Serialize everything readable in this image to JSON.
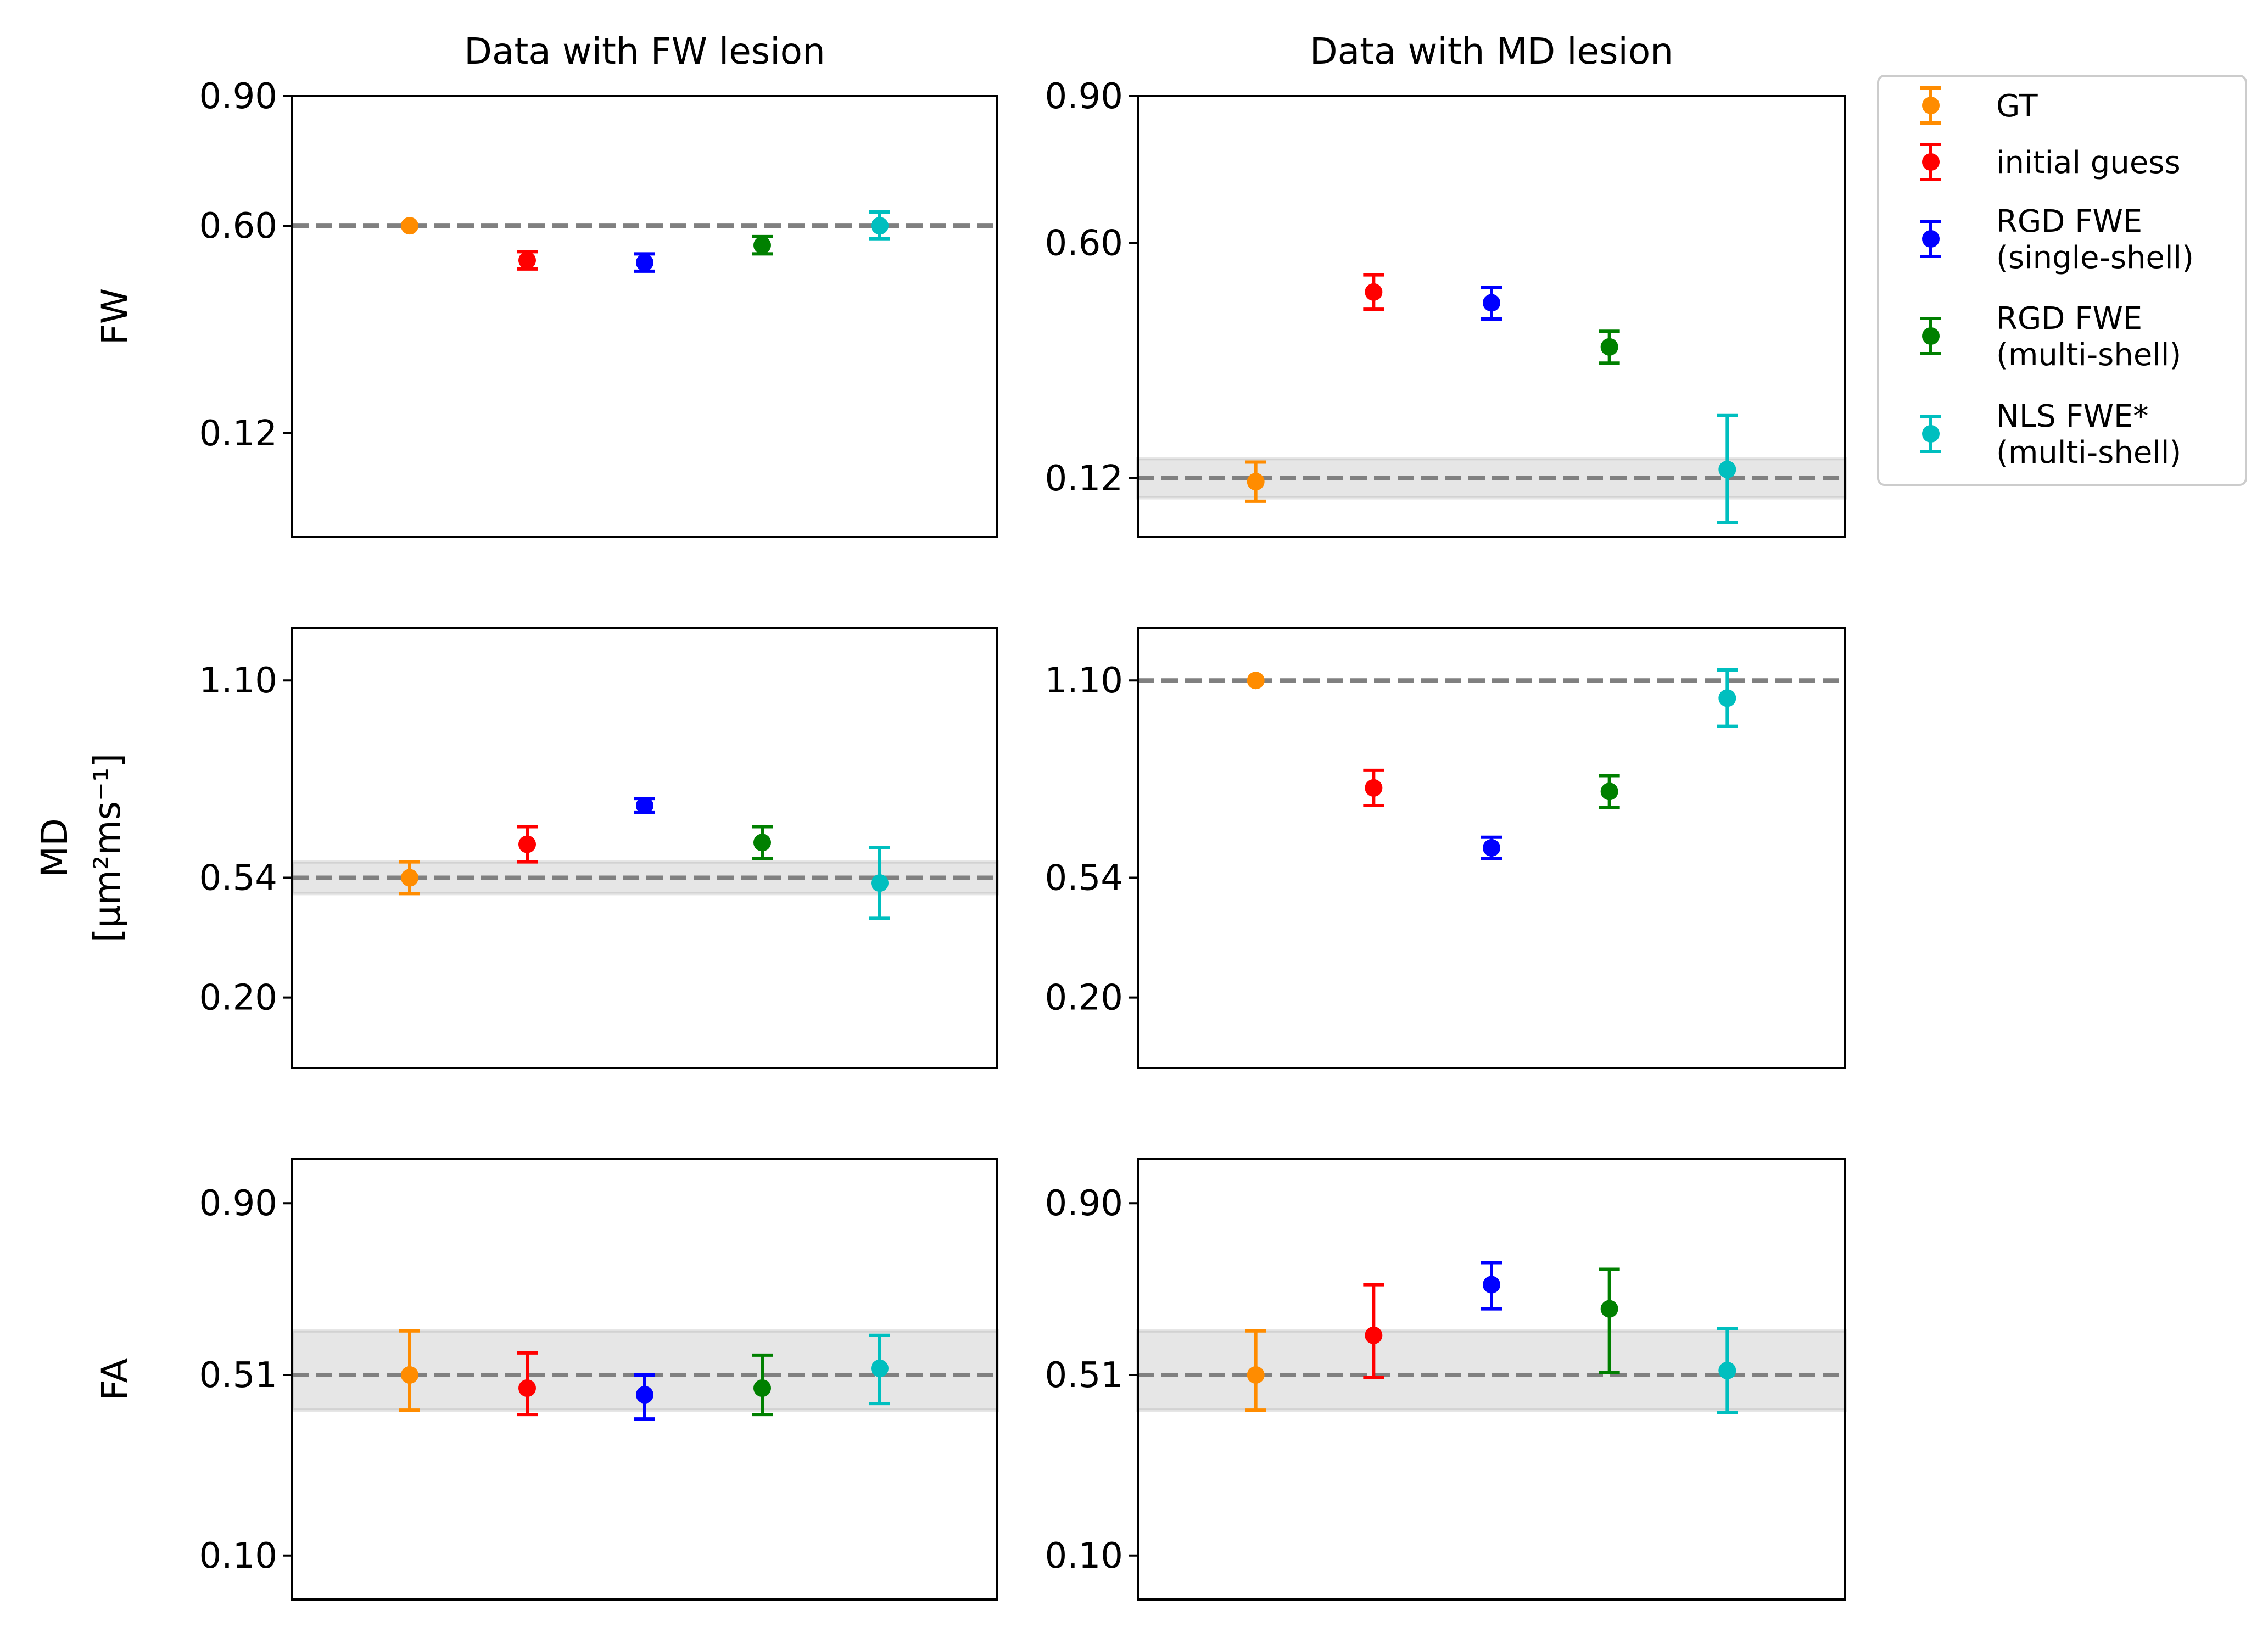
{
  "colors": {
    "GT": "#ff8c00",
    "initial guess": "#ff0000",
    "RGD FWE (single-shell)": "#0000ff",
    "RGD FWE (multi-shell)": "#008000",
    "NLS FWE* (multi-shell)": "#00bfbf",
    "reference_line": "#808080",
    "reference_band": "#e5e5e5"
  },
  "legend": {
    "placement": "upper right, outside the axes",
    "entries": [
      {
        "label_lines": [
          "GT"
        ],
        "color": "#ff8c00"
      },
      {
        "label_lines": [
          "initial guess"
        ],
        "color": "#ff0000"
      },
      {
        "label_lines": [
          "RGD FWE",
          "(single-shell)"
        ],
        "color": "#0000ff"
      },
      {
        "label_lines": [
          "RGD FWE",
          "(multi-shell)"
        ],
        "color": "#008000"
      },
      {
        "label_lines": [
          "NLS FWE*",
          "(multi-shell)"
        ],
        "color": "#00bfbf"
      }
    ]
  },
  "chart_data": [
    {
      "type": "scatter",
      "row": 0,
      "col": 0,
      "title": "Data with FW lesion",
      "ylabel": "FW",
      "ylabel_sub": "",
      "ylim": [
        -0.12,
        0.9
      ],
      "yticks": [
        {
          "value": 0.9,
          "label": "0.90"
        },
        {
          "value": 0.6,
          "label": "0.60"
        },
        {
          "value": 0.12,
          "label": "0.12"
        }
      ],
      "reference": {
        "value": 0.6,
        "band": [
          0.6,
          0.6
        ]
      },
      "series": [
        {
          "name": "GT",
          "x": 1,
          "y": 0.6,
          "yerr_low": 0.6,
          "yerr_high": 0.6
        },
        {
          "name": "initial guess",
          "x": 2,
          "y": 0.52,
          "yerr_low": 0.5,
          "yerr_high": 0.54
        },
        {
          "name": "RGD FWE (single-shell)",
          "x": 3,
          "y": 0.515,
          "yerr_low": 0.495,
          "yerr_high": 0.535
        },
        {
          "name": "RGD FWE (multi-shell)",
          "x": 4,
          "y": 0.555,
          "yerr_low": 0.535,
          "yerr_high": 0.575
        },
        {
          "name": "NLS FWE* (multi-shell)",
          "x": 5,
          "y": 0.6,
          "yerr_low": 0.57,
          "yerr_high": 0.632
        }
      ]
    },
    {
      "type": "scatter",
      "row": 0,
      "col": 1,
      "title": "Data with MD lesion",
      "ylabel": "",
      "ylabel_sub": "",
      "ylim": [
        0.0,
        0.9
      ],
      "yticks": [
        {
          "value": 0.9,
          "label": "0.90"
        },
        {
          "value": 0.6,
          "label": "0.60"
        },
        {
          "value": 0.12,
          "label": "0.12"
        }
      ],
      "reference": {
        "value": 0.12,
        "band": [
          0.08,
          0.16
        ]
      },
      "series": [
        {
          "name": "GT",
          "x": 1,
          "y": 0.113,
          "yerr_low": 0.073,
          "yerr_high": 0.153
        },
        {
          "name": "initial guess",
          "x": 2,
          "y": 0.5,
          "yerr_low": 0.465,
          "yerr_high": 0.535
        },
        {
          "name": "RGD FWE (single-shell)",
          "x": 3,
          "y": 0.478,
          "yerr_low": 0.445,
          "yerr_high": 0.51
        },
        {
          "name": "RGD FWE (multi-shell)",
          "x": 4,
          "y": 0.388,
          "yerr_low": 0.355,
          "yerr_high": 0.42
        },
        {
          "name": "NLS FWE* (multi-shell)",
          "x": 5,
          "y": 0.138,
          "yerr_low": 0.03,
          "yerr_high": 0.248
        }
      ]
    },
    {
      "type": "scatter",
      "row": 1,
      "col": 0,
      "title": "",
      "ylabel": "MD",
      "ylabel_sub": "[μm²ms⁻¹]",
      "ylim": [
        0.0,
        1.25
      ],
      "yticks": [
        {
          "value": 1.1,
          "label": "1.10"
        },
        {
          "value": 0.54,
          "label": "0.54"
        },
        {
          "value": 0.2,
          "label": "0.20"
        }
      ],
      "reference": {
        "value": 0.54,
        "band": [
          0.495,
          0.585
        ]
      },
      "series": [
        {
          "name": "GT",
          "x": 1,
          "y": 0.54,
          "yerr_low": 0.495,
          "yerr_high": 0.585
        },
        {
          "name": "initial guess",
          "x": 2,
          "y": 0.635,
          "yerr_low": 0.585,
          "yerr_high": 0.685
        },
        {
          "name": "RGD FWE (single-shell)",
          "x": 3,
          "y": 0.745,
          "yerr_low": 0.725,
          "yerr_high": 0.765
        },
        {
          "name": "RGD FWE (multi-shell)",
          "x": 4,
          "y": 0.64,
          "yerr_low": 0.595,
          "yerr_high": 0.685
        },
        {
          "name": "NLS FWE* (multi-shell)",
          "x": 5,
          "y": 0.525,
          "yerr_low": 0.425,
          "yerr_high": 0.625
        }
      ]
    },
    {
      "type": "scatter",
      "row": 1,
      "col": 1,
      "title": "",
      "ylabel": "",
      "ylabel_sub": "",
      "ylim": [
        0.0,
        1.25
      ],
      "yticks": [
        {
          "value": 1.1,
          "label": "1.10"
        },
        {
          "value": 0.54,
          "label": "0.54"
        },
        {
          "value": 0.2,
          "label": "0.20"
        }
      ],
      "reference": {
        "value": 1.1,
        "band": [
          1.1,
          1.1
        ]
      },
      "series": [
        {
          "name": "GT",
          "x": 1,
          "y": 1.1,
          "yerr_low": 1.1,
          "yerr_high": 1.1
        },
        {
          "name": "initial guess",
          "x": 2,
          "y": 0.795,
          "yerr_low": 0.745,
          "yerr_high": 0.845
        },
        {
          "name": "RGD FWE (single-shell)",
          "x": 3,
          "y": 0.625,
          "yerr_low": 0.595,
          "yerr_high": 0.655
        },
        {
          "name": "RGD FWE (multi-shell)",
          "x": 4,
          "y": 0.785,
          "yerr_low": 0.74,
          "yerr_high": 0.83
        },
        {
          "name": "NLS FWE* (multi-shell)",
          "x": 5,
          "y": 1.05,
          "yerr_low": 0.97,
          "yerr_high": 1.13
        }
      ]
    },
    {
      "type": "scatter",
      "row": 2,
      "col": 0,
      "title": "",
      "ylabel": "FA",
      "ylabel_sub": "",
      "ylim": [
        0.0,
        1.0
      ],
      "yticks": [
        {
          "value": 0.9,
          "label": "0.90"
        },
        {
          "value": 0.51,
          "label": "0.51"
        },
        {
          "value": 0.1,
          "label": "0.10"
        }
      ],
      "reference": {
        "value": 0.51,
        "band": [
          0.43,
          0.61
        ]
      },
      "series": [
        {
          "name": "GT",
          "x": 1,
          "y": 0.51,
          "yerr_low": 0.43,
          "yerr_high": 0.61
        },
        {
          "name": "initial guess",
          "x": 2,
          "y": 0.48,
          "yerr_low": 0.42,
          "yerr_high": 0.56
        },
        {
          "name": "RGD FWE (single-shell)",
          "x": 3,
          "y": 0.465,
          "yerr_low": 0.41,
          "yerr_high": 0.51
        },
        {
          "name": "RGD FWE (multi-shell)",
          "x": 4,
          "y": 0.48,
          "yerr_low": 0.42,
          "yerr_high": 0.555
        },
        {
          "name": "NLS FWE* (multi-shell)",
          "x": 5,
          "y": 0.525,
          "yerr_low": 0.445,
          "yerr_high": 0.6
        }
      ]
    },
    {
      "type": "scatter",
      "row": 2,
      "col": 1,
      "title": "",
      "ylabel": "",
      "ylabel_sub": "",
      "ylim": [
        0.0,
        1.0
      ],
      "yticks": [
        {
          "value": 0.9,
          "label": "0.90"
        },
        {
          "value": 0.51,
          "label": "0.51"
        },
        {
          "value": 0.1,
          "label": "0.10"
        }
      ],
      "reference": {
        "value": 0.51,
        "band": [
          0.43,
          0.61
        ]
      },
      "series": [
        {
          "name": "GT",
          "x": 1,
          "y": 0.51,
          "yerr_low": 0.43,
          "yerr_high": 0.61
        },
        {
          "name": "initial guess",
          "x": 2,
          "y": 0.6,
          "yerr_low": 0.505,
          "yerr_high": 0.715
        },
        {
          "name": "RGD FWE (single-shell)",
          "x": 3,
          "y": 0.715,
          "yerr_low": 0.66,
          "yerr_high": 0.765
        },
        {
          "name": "RGD FWE (multi-shell)",
          "x": 4,
          "y": 0.66,
          "yerr_low": 0.515,
          "yerr_high": 0.75
        },
        {
          "name": "NLS FWE* (multi-shell)",
          "x": 5,
          "y": 0.52,
          "yerr_low": 0.425,
          "yerr_high": 0.615
        }
      ]
    }
  ]
}
